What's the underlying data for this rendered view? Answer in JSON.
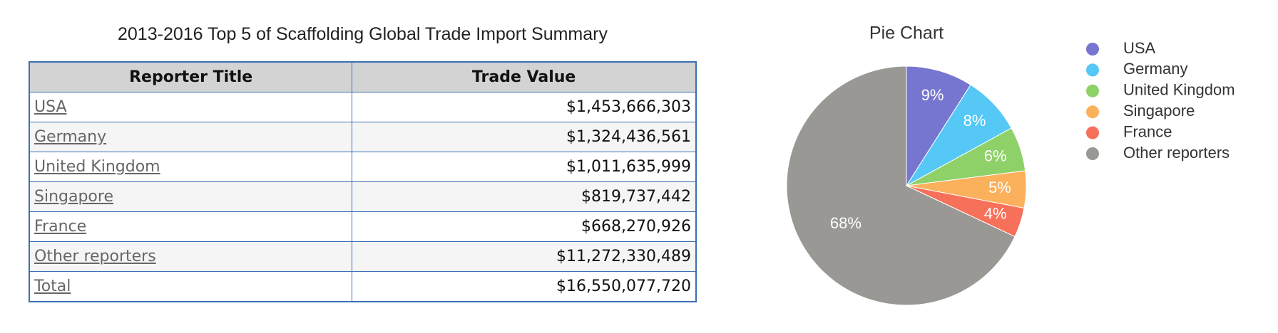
{
  "table": {
    "title": "2013-2016 Top 5 of Scaffolding Global Trade Import Summary",
    "columns": [
      "Reporter Title",
      "Trade Value"
    ],
    "rows": [
      [
        "USA",
        "$1,453,666,303"
      ],
      [
        "Germany",
        "$1,324,436,561"
      ],
      [
        "United Kingdom",
        "$1,011,635,999"
      ],
      [
        "Singapore",
        "$819,737,442"
      ],
      [
        "France",
        "$668,270,926"
      ],
      [
        "Other reporters",
        "$11,272,330,489"
      ],
      [
        "Total",
        "$16,550,077,720"
      ]
    ]
  },
  "chart_data": {
    "type": "pie",
    "title": "Pie Chart",
    "categories": [
      "USA",
      "Germany",
      "United Kingdom",
      "Singapore",
      "France",
      "Other reporters"
    ],
    "values": [
      9,
      8,
      6,
      5,
      4,
      68
    ],
    "value_labels": [
      "9%",
      "8%",
      "6%",
      "5%",
      "4%",
      "68%"
    ],
    "colors": [
      "#7676d1",
      "#55c8f6",
      "#8fd169",
      "#fbb15b",
      "#f6705a",
      "#999894"
    ],
    "legend": "right"
  }
}
